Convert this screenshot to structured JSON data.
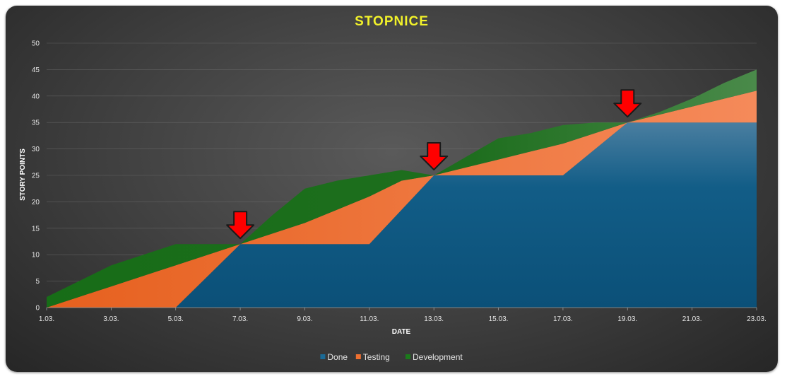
{
  "chart_data": {
    "type": "area",
    "stacked": true,
    "title": "STOPNICE",
    "xlabel": "DATE",
    "ylabel": "STORY POINTS",
    "ylim": [
      0,
      50
    ],
    "yticks": [
      0,
      5,
      10,
      15,
      20,
      25,
      30,
      35,
      40,
      45,
      50
    ],
    "x": [
      "1.03.",
      "2.03.",
      "3.03.",
      "4.03.",
      "5.03.",
      "6.03.",
      "7.03.",
      "8.03.",
      "9.03.",
      "10.03.",
      "11.03.",
      "12.03.",
      "13.03.",
      "14.03.",
      "15.03.",
      "16.03.",
      "17.03.",
      "18.03.",
      "19.03.",
      "20.03.",
      "21.03.",
      "22.03.",
      "23.03."
    ],
    "xticks": [
      "1.03.",
      "3.03.",
      "5.03.",
      "7.03.",
      "9.03.",
      "11.03.",
      "13.03.",
      "15.03.",
      "17.03.",
      "19.03.",
      "21.03.",
      "23.03."
    ],
    "series": [
      {
        "name": "Done",
        "color": "#0e5a85",
        "values": [
          0,
          0,
          0,
          0,
          0,
          6,
          12,
          12,
          12,
          12,
          12,
          18.5,
          25,
          25,
          25,
          25,
          25,
          30,
          35,
          35,
          35,
          35,
          35
        ]
      },
      {
        "name": "Testing",
        "color": "#ef7030",
        "values": [
          0,
          2,
          4,
          6,
          8,
          4,
          0,
          2,
          4,
          6.5,
          9,
          5.5,
          0,
          1.5,
          3,
          4.5,
          6,
          3,
          0,
          1.5,
          3,
          4.5,
          6
        ]
      },
      {
        "name": "Development",
        "color": "#1b6e1b",
        "values": [
          2,
          3,
          4,
          4,
          4,
          2,
          0,
          3.5,
          6.5,
          5.5,
          4,
          2,
          0,
          2,
          4,
          3.5,
          3.5,
          2,
          0,
          0.5,
          1.5,
          3,
          4
        ]
      }
    ],
    "legend": "bottom",
    "grid": true,
    "annotations": [
      {
        "type": "arrow-down",
        "x": "7.03.",
        "color": "#ff0000"
      },
      {
        "type": "arrow-down",
        "x": "13.03.",
        "color": "#ff0000"
      },
      {
        "type": "arrow-down",
        "x": "19.03.",
        "color": "#ff0000"
      }
    ]
  }
}
